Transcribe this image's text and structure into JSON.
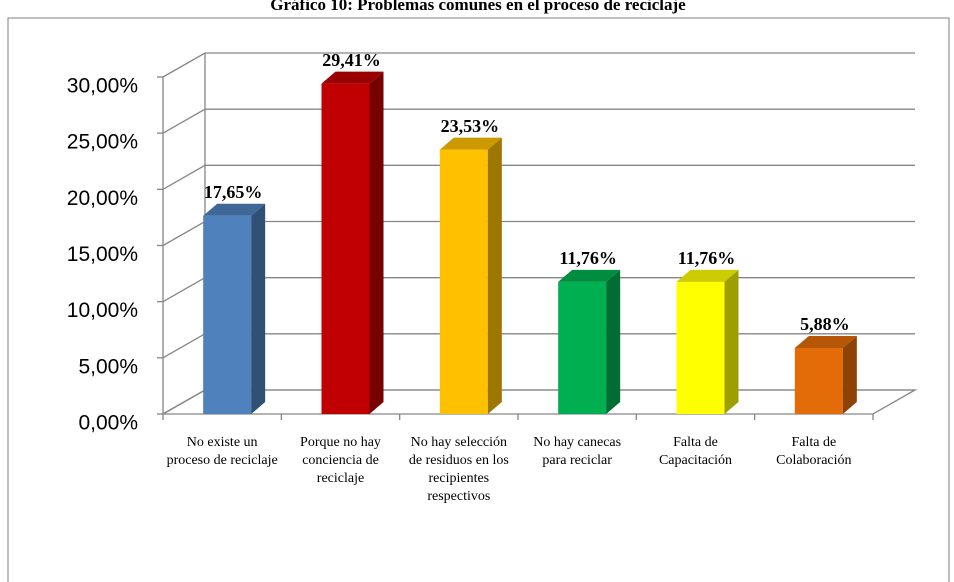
{
  "chart_data": {
    "type": "bar3d",
    "title": "Gráfico 10: Problemas comunes en el proceso de reciclaje",
    "categories": [
      "No existe un proceso de reciclaje",
      "Porque no hay conciencia de reciclaje",
      "No hay selección de residuos en los recipientes respectivos",
      "No hay canecas para reciclar",
      "Falta de Capacitación",
      "Falta de Colaboración"
    ],
    "values": [
      17.65,
      29.41,
      23.53,
      11.76,
      11.76,
      5.88
    ],
    "value_labels": [
      "17,65%",
      "29,41%",
      "23,53%",
      "11,76%",
      "11,76%",
      "5,88%"
    ],
    "colors": [
      "#4f81bd",
      "#c00000",
      "#ffc000",
      "#00b050",
      "#ffff00",
      "#e36c09"
    ],
    "ylim": [
      0,
      30
    ],
    "yticks": [
      {
        "value": 0,
        "label": "0,00%"
      },
      {
        "value": 5,
        "label": "5,00%"
      },
      {
        "value": 10,
        "label": "10,00%"
      },
      {
        "value": 15,
        "label": "15,00%"
      },
      {
        "value": 20,
        "label": "20,00%"
      },
      {
        "value": 25,
        "label": "25,00%"
      },
      {
        "value": 30,
        "label": "30,00%"
      }
    ],
    "grid": true
  }
}
